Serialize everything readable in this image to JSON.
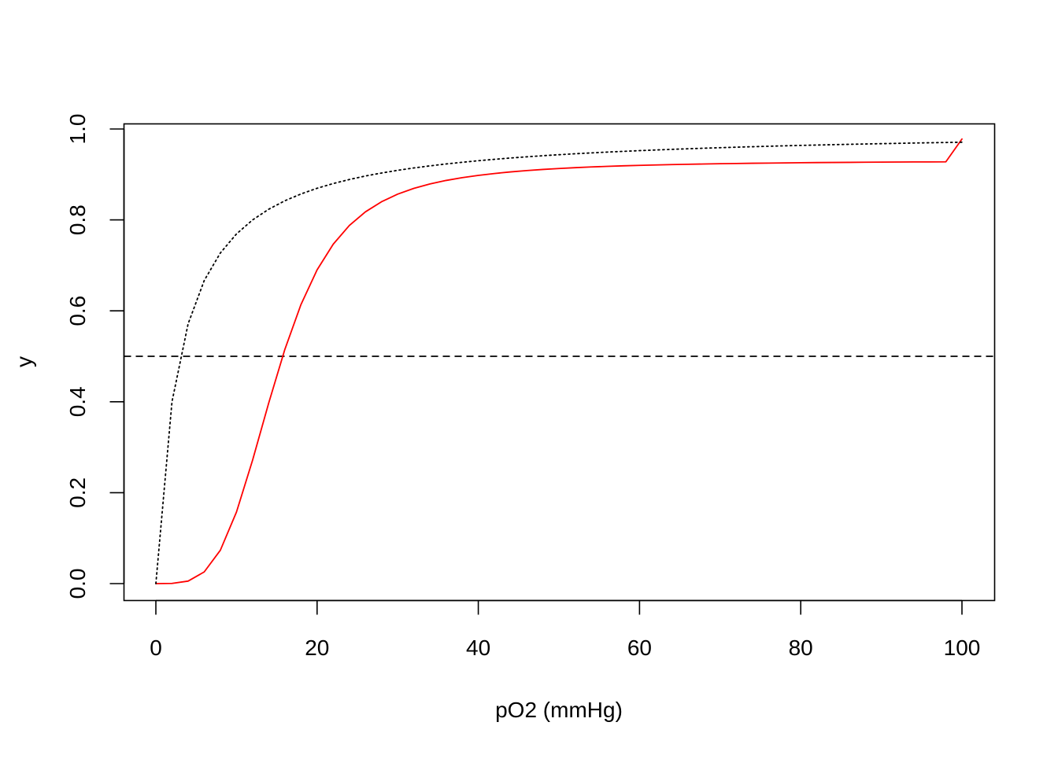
{
  "chart_data": {
    "type": "line",
    "title": "",
    "xlabel": "pO2 (mmHg)",
    "ylabel": "y",
    "xlim": [
      0,
      100
    ],
    "ylim": [
      0,
      1
    ],
    "x_ticks": [
      0,
      20,
      40,
      60,
      80,
      100
    ],
    "y_ticks": [
      0.0,
      0.2,
      0.4,
      0.6,
      0.8,
      1.0
    ],
    "x_tick_labels": [
      "0",
      "20",
      "40",
      "60",
      "80",
      "100"
    ],
    "y_tick_labels": [
      "0.0",
      "0.2",
      "0.4",
      "0.6",
      "0.8",
      "1.0"
    ],
    "grid": false,
    "legend": "none",
    "x": [
      0,
      2,
      4,
      6,
      8,
      10,
      12,
      14,
      16,
      18,
      20,
      22,
      24,
      26,
      28,
      30,
      32,
      34,
      36,
      38,
      40,
      42,
      44,
      46,
      48,
      50,
      52,
      54,
      56,
      58,
      60,
      62,
      64,
      66,
      68,
      70,
      72,
      74,
      76,
      78,
      80,
      82,
      84,
      86,
      88,
      90,
      92,
      94,
      96,
      98,
      100
    ],
    "series": [
      {
        "color": "#ff0000",
        "line_style": "solid",
        "values": [
          0.0,
          0.0004,
          0.0055,
          0.0257,
          0.0734,
          0.1574,
          0.2716,
          0.3973,
          0.5151,
          0.6138,
          0.6901,
          0.7465,
          0.7877,
          0.8178,
          0.84,
          0.8567,
          0.8694,
          0.8791,
          0.8868,
          0.8929,
          0.898,
          0.9021,
          0.9056,
          0.9085,
          0.911,
          0.9131,
          0.9149,
          0.9165,
          0.9178,
          0.919,
          0.92,
          0.9209,
          0.9217,
          0.9224,
          0.923,
          0.9236,
          0.9241,
          0.9246,
          0.925,
          0.9254,
          0.9258,
          0.9261,
          0.9264,
          0.9266,
          0.9269,
          0.9271,
          0.9273,
          0.9275,
          0.9276,
          0.9278,
          0.9779
        ]
      },
      {
        "color": "#000000",
        "line_style": "dotted",
        "values": [
          0.0,
          0.4,
          0.5714,
          0.6667,
          0.7273,
          0.7692,
          0.8,
          0.8235,
          0.8421,
          0.8571,
          0.8696,
          0.88,
          0.8889,
          0.8966,
          0.9032,
          0.9091,
          0.9143,
          0.9189,
          0.9231,
          0.9268,
          0.9302,
          0.9333,
          0.9362,
          0.9388,
          0.9412,
          0.9434,
          0.9455,
          0.9474,
          0.9492,
          0.9508,
          0.9524,
          0.9538,
          0.9552,
          0.9565,
          0.9577,
          0.9589,
          0.96,
          0.961,
          0.962,
          0.963,
          0.9639,
          0.9647,
          0.9655,
          0.9663,
          0.967,
          0.9677,
          0.9684,
          0.9691,
          0.9697,
          0.9703,
          0.9709
        ]
      }
    ],
    "reference_lines": [
      {
        "orientation": "horizontal",
        "y": 0.5,
        "color": "#000000",
        "line_style": "dashed"
      }
    ]
  }
}
